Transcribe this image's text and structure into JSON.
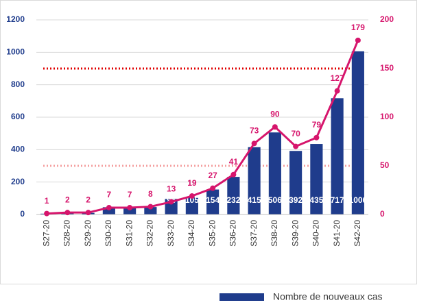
{
  "chart_data": {
    "type": "bar-line",
    "categories": [
      "S27-20",
      "S28-20",
      "S29-20",
      "S30-20",
      "S31-20",
      "S32-20",
      "S33-20",
      "S34-20",
      "S35-20",
      "S36-20",
      "S37-20",
      "S38-20",
      "S39-20",
      "S40-20",
      "S41-20",
      "S42-20"
    ],
    "series": [
      {
        "name": "Nombre de nouveaux cas",
        "type": "bar",
        "color": "#1f3c8c",
        "axis": "y",
        "values": [
          5,
          10,
          10,
          45,
          40,
          46,
          96,
          105,
          154,
          232,
          415,
          506,
          392,
          435,
          717,
          1006
        ]
      },
      {
        "type": "line",
        "color": "#d6156c",
        "axis": "y2",
        "values": [
          1,
          2,
          2,
          7,
          7,
          8,
          13,
          19,
          27,
          41,
          73,
          90,
          70,
          79,
          127,
          179
        ]
      }
    ],
    "ylim": [
      0,
      1200
    ],
    "yticks": [
      0,
      200,
      400,
      600,
      800,
      1000,
      1200
    ],
    "y2lim": [
      0,
      200
    ],
    "y2ticks": [
      0,
      50,
      100,
      150,
      200
    ],
    "reference_lines": [
      {
        "value": 150,
        "axis": "y2",
        "color": "#e00000"
      },
      {
        "value": 50,
        "axis": "y2",
        "color": "#f4a0a0"
      }
    ],
    "grid": true
  }
}
